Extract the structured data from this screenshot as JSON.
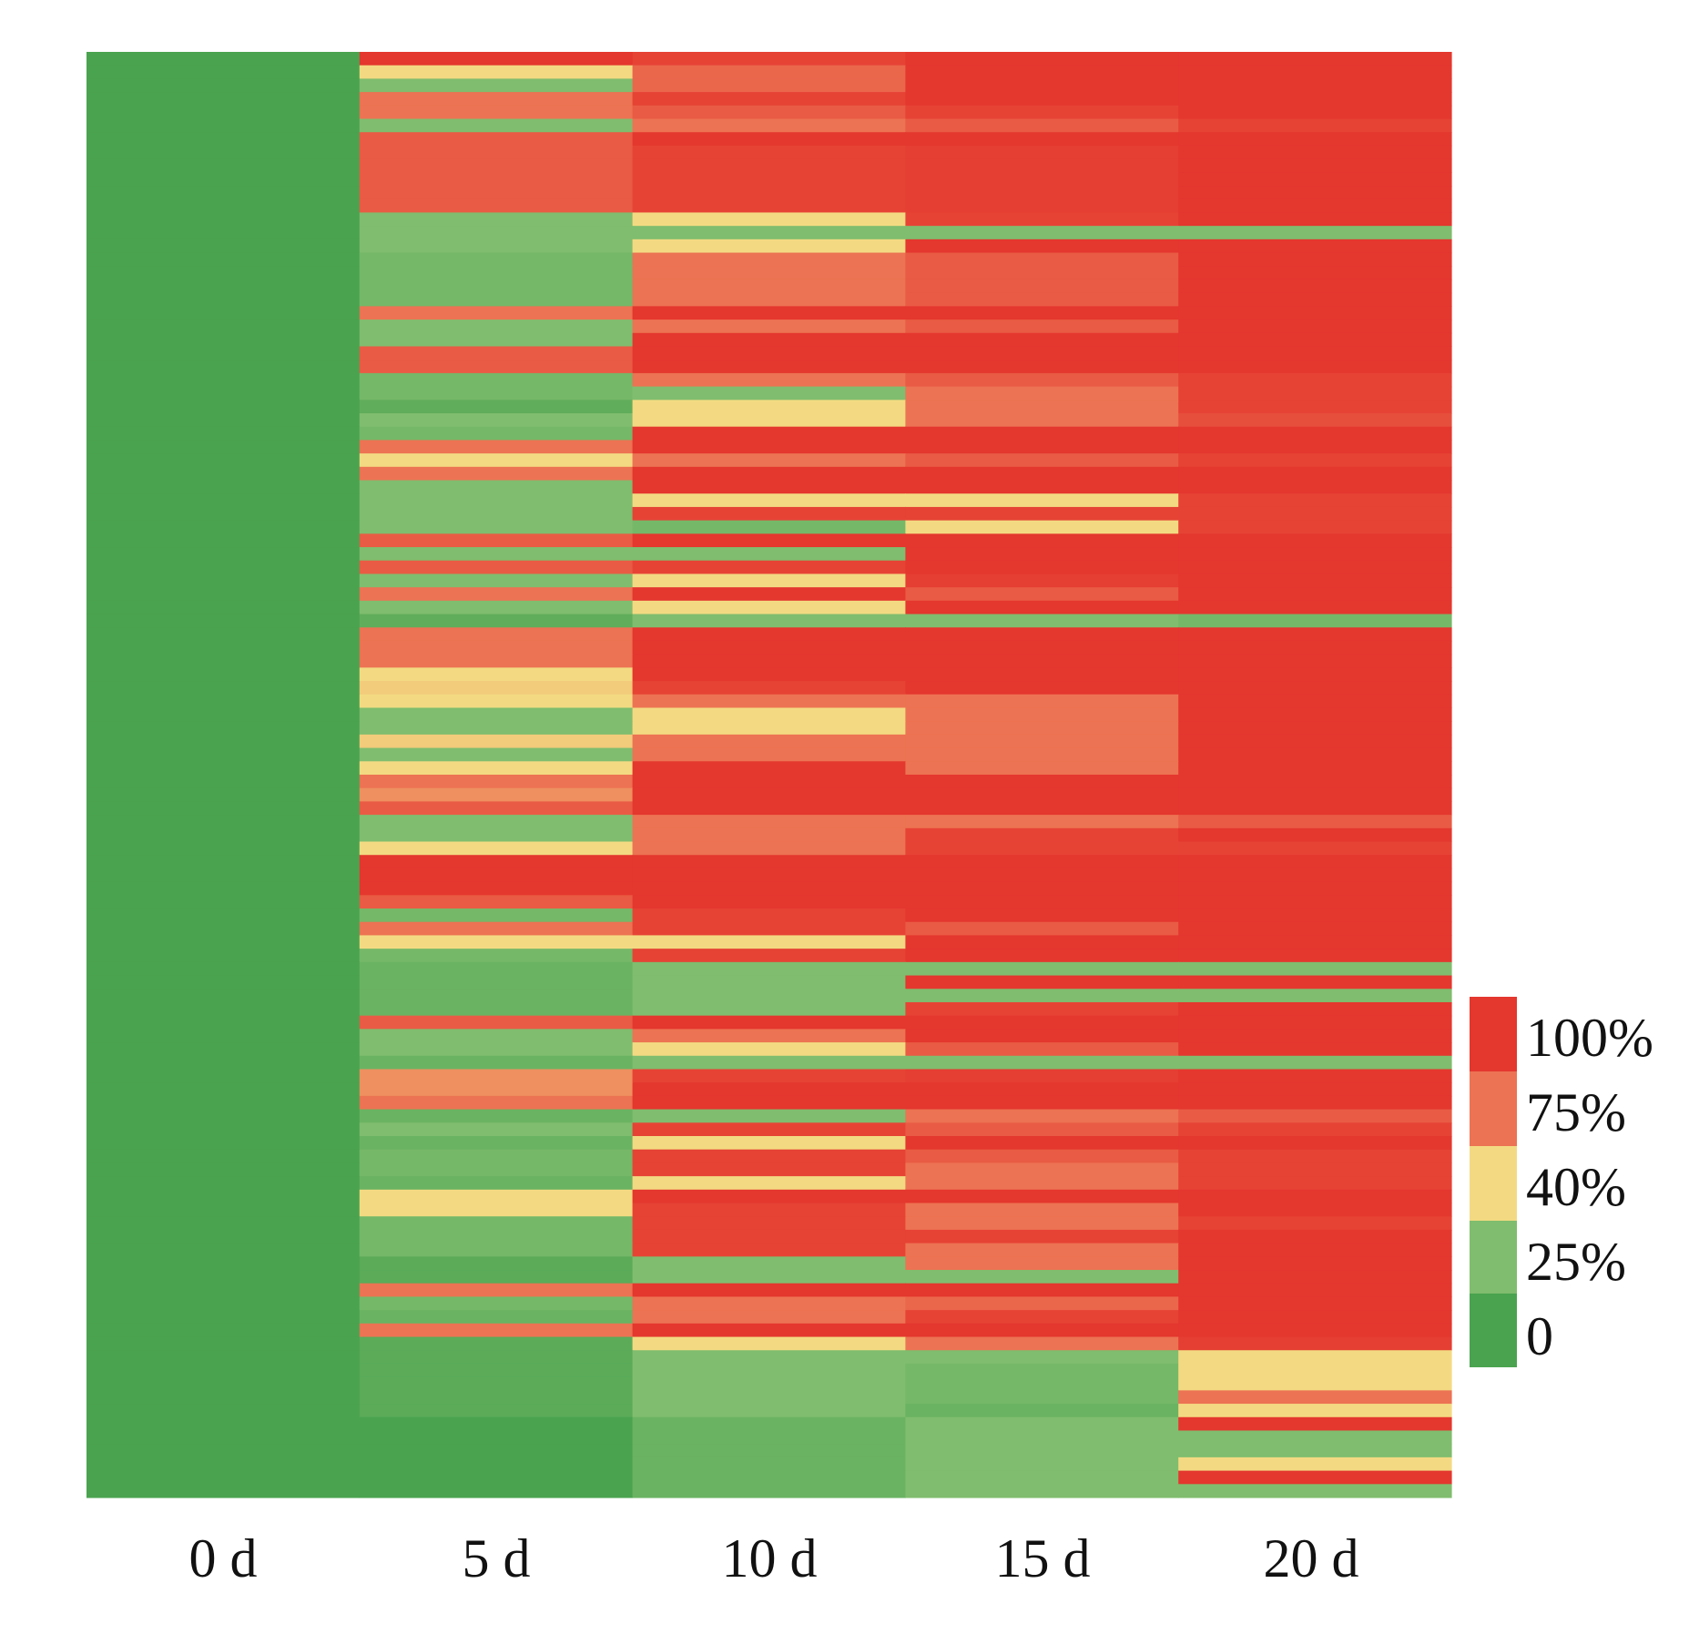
{
  "chart_data": {
    "type": "heatmap",
    "title": "",
    "xlabel": "",
    "ylabel": "",
    "x_categories": [
      "0 d",
      "5 d",
      "10 d",
      "15 d",
      "20 d"
    ],
    "value_unit": "%",
    "value_range": [
      0,
      100
    ],
    "colorscale": [
      {
        "value": 0,
        "color": "#4aa34f"
      },
      {
        "value": 25,
        "color": "#80bd6e"
      },
      {
        "value": 40,
        "color": "#f3da82"
      },
      {
        "value": 75,
        "color": "#ec7353"
      },
      {
        "value": 100,
        "color": "#e4372e"
      }
    ],
    "legend": {
      "position": "right",
      "entries": [
        {
          "label": "100%",
          "value": 100
        },
        {
          "label": "75%",
          "value": 75
        },
        {
          "label": "40%",
          "value": 40
        },
        {
          "label": "25%",
          "value": 25
        },
        {
          "label": "0",
          "value": 0
        }
      ]
    },
    "rows": [
      [
        0,
        100,
        95,
        100,
        100
      ],
      [
        0,
        40,
        80,
        100,
        100
      ],
      [
        0,
        25,
        80,
        100,
        100
      ],
      [
        0,
        75,
        95,
        100,
        100
      ],
      [
        0,
        75,
        85,
        95,
        100
      ],
      [
        0,
        25,
        75,
        85,
        95
      ],
      [
        0,
        85,
        100,
        100,
        100
      ],
      [
        0,
        85,
        95,
        97,
        100
      ],
      [
        0,
        85,
        95,
        97,
        100
      ],
      [
        0,
        85,
        95,
        97,
        100
      ],
      [
        0,
        85,
        95,
        97,
        100
      ],
      [
        0,
        85,
        95,
        97,
        100
      ],
      [
        0,
        25,
        40,
        95,
        100
      ],
      [
        0,
        25,
        25,
        25,
        25
      ],
      [
        0,
        25,
        40,
        100,
        100
      ],
      [
        0,
        20,
        75,
        85,
        100
      ],
      [
        0,
        20,
        75,
        85,
        100
      ],
      [
        0,
        20,
        75,
        85,
        100
      ],
      [
        0,
        20,
        75,
        85,
        100
      ],
      [
        0,
        75,
        100,
        100,
        100
      ],
      [
        0,
        25,
        75,
        85,
        100
      ],
      [
        0,
        25,
        100,
        100,
        100
      ],
      [
        0,
        85,
        100,
        100,
        100
      ],
      [
        0,
        85,
        100,
        100,
        100
      ],
      [
        0,
        20,
        75,
        85,
        95
      ],
      [
        0,
        20,
        25,
        75,
        95
      ],
      [
        0,
        10,
        40,
        75,
        95
      ],
      [
        0,
        25,
        40,
        75,
        90
      ],
      [
        0,
        20,
        100,
        100,
        100
      ],
      [
        0,
        75,
        100,
        100,
        100
      ],
      [
        0,
        40,
        75,
        85,
        95
      ],
      [
        0,
        75,
        100,
        100,
        100
      ],
      [
        0,
        25,
        100,
        100,
        100
      ],
      [
        0,
        25,
        40,
        40,
        95
      ],
      [
        0,
        25,
        95,
        95,
        95
      ],
      [
        0,
        25,
        20,
        40,
        95
      ],
      [
        0,
        85,
        100,
        100,
        100
      ],
      [
        0,
        25,
        25,
        100,
        100
      ],
      [
        0,
        85,
        95,
        100,
        100
      ],
      [
        0,
        25,
        40,
        97,
        100
      ],
      [
        0,
        75,
        100,
        85,
        100
      ],
      [
        0,
        25,
        40,
        100,
        100
      ],
      [
        0,
        10,
        25,
        25,
        20
      ],
      [
        0,
        75,
        100,
        100,
        100
      ],
      [
        0,
        75,
        100,
        100,
        100
      ],
      [
        0,
        75,
        100,
        100,
        100
      ],
      [
        0,
        40,
        100,
        100,
        100
      ],
      [
        0,
        45,
        95,
        100,
        100
      ],
      [
        0,
        40,
        75,
        75,
        100
      ],
      [
        0,
        25,
        40,
        75,
        100
      ],
      [
        0,
        25,
        40,
        75,
        100
      ],
      [
        0,
        45,
        75,
        75,
        100
      ],
      [
        0,
        25,
        75,
        75,
        100
      ],
      [
        0,
        40,
        100,
        75,
        100
      ],
      [
        0,
        75,
        100,
        100,
        100
      ],
      [
        0,
        65,
        100,
        100,
        100
      ],
      [
        0,
        85,
        100,
        100,
        100
      ],
      [
        0,
        25,
        75,
        75,
        85
      ],
      [
        0,
        25,
        75,
        95,
        100
      ],
      [
        0,
        40,
        75,
        95,
        95
      ],
      [
        0,
        100,
        100,
        100,
        100
      ],
      [
        0,
        100,
        100,
        100,
        100
      ],
      [
        0,
        100,
        100,
        100,
        100
      ],
      [
        0,
        85,
        100,
        100,
        100
      ],
      [
        0,
        20,
        95,
        100,
        100
      ],
      [
        0,
        75,
        95,
        85,
        100
      ],
      [
        0,
        40,
        40,
        100,
        100
      ],
      [
        0,
        20,
        95,
        100,
        100
      ],
      [
        0,
        15,
        25,
        25,
        25
      ],
      [
        0,
        15,
        25,
        100,
        100
      ],
      [
        0,
        15,
        25,
        25,
        25
      ],
      [
        0,
        15,
        25,
        95,
        100
      ],
      [
        0,
        85,
        100,
        100,
        100
      ],
      [
        0,
        25,
        75,
        100,
        100
      ],
      [
        0,
        25,
        40,
        85,
        100
      ],
      [
        0,
        15,
        25,
        25,
        25
      ],
      [
        0,
        65,
        95,
        97,
        100
      ],
      [
        0,
        65,
        100,
        100,
        100
      ],
      [
        0,
        75,
        100,
        100,
        100
      ],
      [
        0,
        15,
        25,
        75,
        85
      ],
      [
        0,
        25,
        95,
        85,
        95
      ],
      [
        0,
        15,
        40,
        100,
        100
      ],
      [
        0,
        20,
        95,
        85,
        95
      ],
      [
        0,
        20,
        95,
        75,
        95
      ],
      [
        0,
        15,
        40,
        75,
        95
      ],
      [
        0,
        40,
        100,
        100,
        100
      ],
      [
        0,
        40,
        95,
        75,
        100
      ],
      [
        0,
        20,
        95,
        75,
        95
      ],
      [
        0,
        20,
        95,
        95,
        100
      ],
      [
        0,
        20,
        95,
        75,
        100
      ],
      [
        0,
        8,
        25,
        75,
        100
      ],
      [
        0,
        8,
        25,
        25,
        100
      ],
      [
        0,
        75,
        100,
        100,
        100
      ],
      [
        0,
        20,
        75,
        80,
        100
      ],
      [
        0,
        15,
        75,
        95,
        100
      ],
      [
        0,
        75,
        100,
        100,
        100
      ],
      [
        0,
        8,
        40,
        75,
        97
      ],
      [
        0,
        8,
        25,
        25,
        40
      ],
      [
        0,
        8,
        25,
        20,
        40
      ],
      [
        0,
        8,
        25,
        20,
        40
      ],
      [
        0,
        8,
        25,
        20,
        75
      ],
      [
        0,
        8,
        25,
        15,
        40
      ],
      [
        0,
        0,
        15,
        25,
        100
      ],
      [
        0,
        0,
        15,
        25,
        25
      ],
      [
        0,
        0,
        15,
        25,
        25
      ],
      [
        0,
        0,
        15,
        25,
        40
      ],
      [
        0,
        0,
        15,
        25,
        100
      ],
      [
        0,
        0,
        15,
        25,
        25
      ]
    ]
  }
}
